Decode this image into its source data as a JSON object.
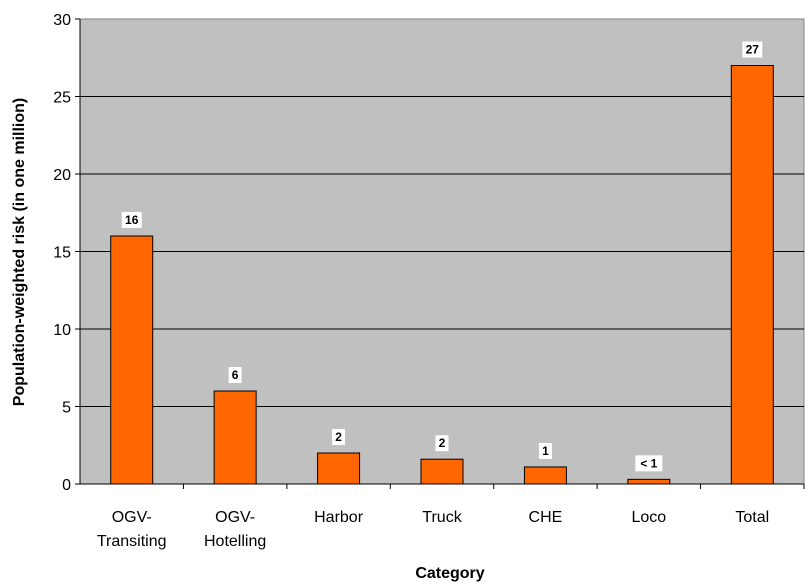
{
  "chart_data": {
    "type": "bar",
    "categories": [
      [
        "OGV-",
        "Transiting"
      ],
      [
        "OGV-",
        "Hotelling"
      ],
      [
        "Harbor"
      ],
      [
        "Truck"
      ],
      [
        "CHE"
      ],
      [
        "Loco"
      ],
      [
        "Total"
      ]
    ],
    "values": [
      16,
      6,
      2,
      1.6,
      1.1,
      0.3,
      27
    ],
    "data_labels": [
      "16",
      "6",
      "2",
      "2",
      "1",
      "< 1",
      "27"
    ],
    "xlabel": "Category",
    "ylabel": "Population-weighted risk (in one million)",
    "ylim": [
      0,
      30
    ],
    "yticks": [
      0,
      5,
      10,
      15,
      20,
      25,
      30
    ],
    "grid": true,
    "legend": "none",
    "colors": {
      "bar_fill": "#ff6600",
      "bar_stroke": "#000000",
      "plot_background": "#c0c0c0",
      "gridline": "#000000"
    }
  }
}
